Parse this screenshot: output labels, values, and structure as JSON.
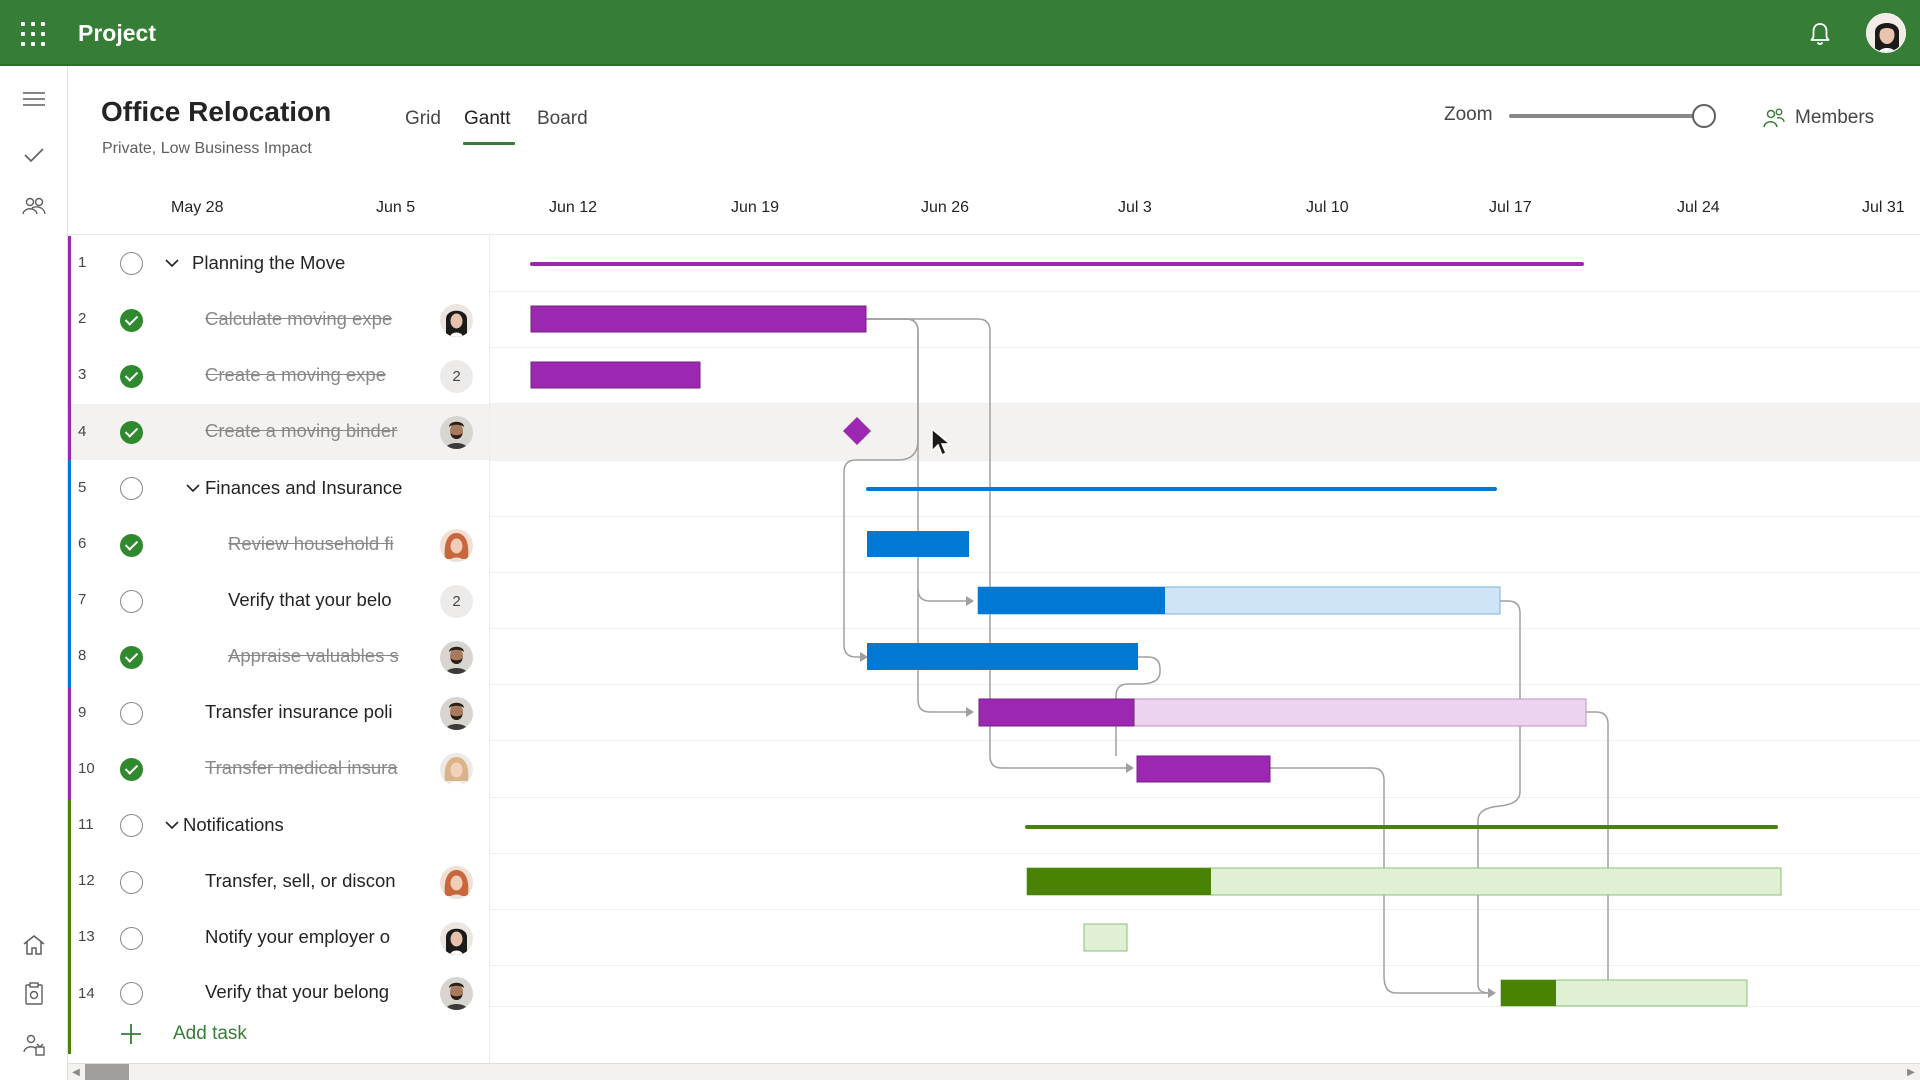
{
  "app": {
    "title": "Project"
  },
  "plan": {
    "title": "Office Relocation",
    "subtitle": "Private, Low Business Impact"
  },
  "views": {
    "grid": "Grid",
    "gantt": "Gantt",
    "board": "Board",
    "active": "Gantt"
  },
  "zoom": {
    "label": "Zoom",
    "level": 0.95
  },
  "members": {
    "label": "Members"
  },
  "timeline": {
    "dates": [
      "May  28",
      "Jun  5",
      "Jun  12",
      "Jun  19",
      "Jun  26",
      "Jul  3",
      "Jul  10",
      "Jul  17",
      "Jul  24",
      "Jul  31"
    ]
  },
  "colors": {
    "brand": "#367d36",
    "purple": "#9c27b0",
    "purple_light": "#ecd3ee",
    "blue": "#0078d4",
    "blue_light": "#cfe4f7",
    "green": "#498205",
    "green_light": "#dff0d4",
    "complete": "#2f8a2f"
  },
  "tasks": [
    {
      "num": "1",
      "name": "Planning the Move",
      "type": "group",
      "done": false
    },
    {
      "num": "2",
      "name": "Calculate moving expe",
      "type": "task",
      "done": true,
      "assignee": "avatar-woman-dark-hair"
    },
    {
      "num": "3",
      "name": "Create a moving expe",
      "type": "task",
      "done": true,
      "count": "2"
    },
    {
      "num": "4",
      "name": "Create a moving binder",
      "type": "task",
      "done": true,
      "assignee": "avatar-man-beard"
    },
    {
      "num": "5",
      "name": "Finances and Insurance",
      "type": "group",
      "done": false
    },
    {
      "num": "6",
      "name": "Review household fi",
      "type": "task",
      "done": true,
      "assignee": "avatar-woman-red-hair"
    },
    {
      "num": "7",
      "name": "Verify that your belo",
      "type": "task",
      "done": false,
      "count": "2"
    },
    {
      "num": "8",
      "name": "Appraise valuables s",
      "type": "task",
      "done": true,
      "assignee": "avatar-man-beard"
    },
    {
      "num": "9",
      "name": "Transfer insurance poli",
      "type": "task",
      "done": false,
      "assignee": "avatar-man-beard"
    },
    {
      "num": "10",
      "name": "Transfer medical insura",
      "type": "task",
      "done": true,
      "assignee": "avatar-woman-blonde"
    },
    {
      "num": "11",
      "name": "Notifications",
      "type": "group",
      "done": false
    },
    {
      "num": "12",
      "name": "Transfer, sell, or discon",
      "type": "task",
      "done": false,
      "assignee": "avatar-woman-red-hair"
    },
    {
      "num": "13",
      "name": "Notify your employer o",
      "type": "task",
      "done": false,
      "assignee": "avatar-woman-dark-hair"
    },
    {
      "num": "14",
      "name": "Verify that your belong",
      "type": "task",
      "done": false,
      "assignee": "avatar-man-beard"
    }
  ],
  "add_task": {
    "label": "Add task"
  }
}
